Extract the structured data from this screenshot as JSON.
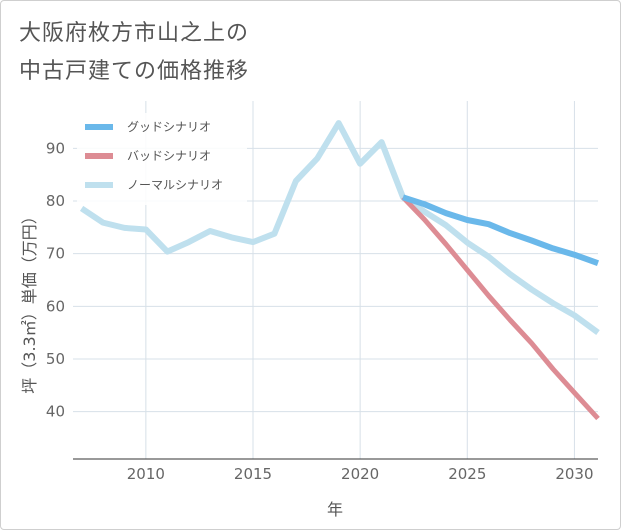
{
  "title_line1": "大阪府枚方市山之上の",
  "title_line2": "中古戸建ての価格推移",
  "colors": {
    "good": "#6ab8ea",
    "bad": "#dd8c94",
    "normal": "#bfe0ee",
    "grid": "#d7e0e8",
    "axis": "#333333"
  },
  "chart_data": {
    "type": "line",
    "title": "大阪府枚方市山之上の中古戸建ての価格推移",
    "xlabel": "年",
    "ylabel": "坪（3.3㎡）単価（万円）",
    "xlim": [
      2006.6,
      2031.1
    ],
    "ylim": [
      31.0,
      99.0
    ],
    "xticks": [
      2010,
      2015,
      2020,
      2025,
      2030
    ],
    "yticks": [
      40,
      50,
      60,
      70,
      80,
      90
    ],
    "legend_position": "top-left",
    "series": [
      {
        "name": "グッドシナリオ",
        "color": "#6ab8ea",
        "width": 6,
        "x": [
          2022,
          2023,
          2024,
          2025,
          2026,
          2027,
          2028,
          2029,
          2030,
          2031.1
        ],
        "y": [
          80.7,
          79.4,
          77.7,
          76.4,
          75.6,
          73.9,
          72.5,
          71.0,
          69.8,
          68.2
        ]
      },
      {
        "name": "バッドシナリオ",
        "color": "#dd8c94",
        "width": 5,
        "x": [
          2022,
          2023,
          2024,
          2025,
          2026,
          2027,
          2028,
          2029,
          2030,
          2031.1
        ],
        "y": [
          80.7,
          76.5,
          71.8,
          66.9,
          62.0,
          57.4,
          53.0,
          48.1,
          43.6,
          38.7
        ]
      },
      {
        "name": "ノーマルシナリオ",
        "color": "#bfe0ee",
        "width": 6,
        "x": [
          2007,
          2008,
          2009,
          2010,
          2011,
          2012,
          2013,
          2014,
          2015,
          2016,
          2017,
          2018,
          2019,
          2020,
          2021,
          2022,
          2023,
          2024,
          2025,
          2026,
          2027,
          2028,
          2029,
          2030,
          2031.1
        ],
        "y": [
          78.6,
          75.9,
          74.9,
          74.6,
          70.4,
          72.2,
          74.3,
          73.1,
          72.2,
          73.8,
          83.8,
          88.1,
          94.8,
          87.1,
          91.2,
          80.7,
          78.0,
          75.4,
          72.1,
          69.4,
          66.1,
          63.2,
          60.6,
          58.3,
          55.0
        ]
      }
    ]
  }
}
